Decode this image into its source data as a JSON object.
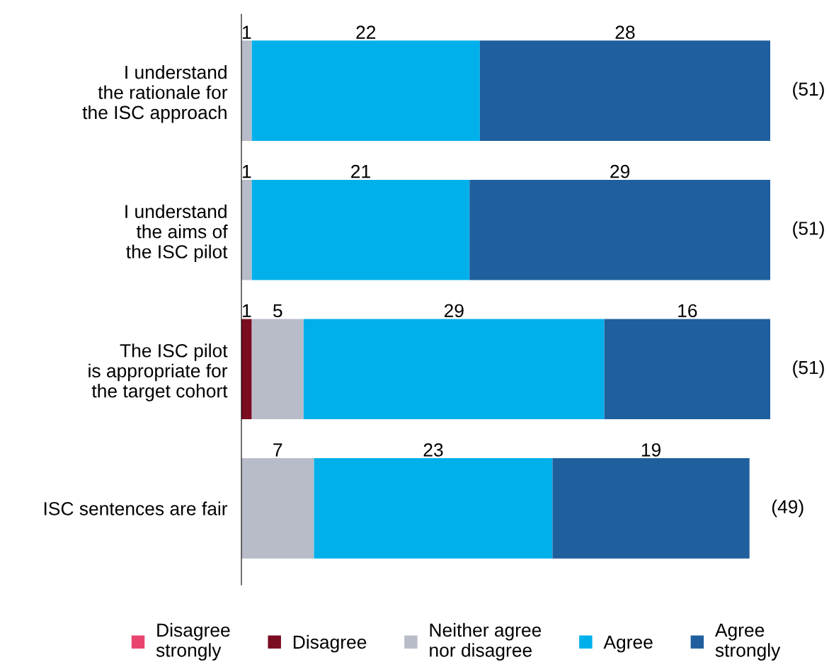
{
  "chart_data": {
    "type": "bar",
    "orientation": "horizontal",
    "stacked": true,
    "categories": [
      "I understand\nthe rationale for\nthe ISC approach",
      "I understand\nthe aims of\nthe ISC pilot",
      "The ISC pilot\nis appropriate for\nthe target cohort",
      "ISC sentences are fair"
    ],
    "series": [
      {
        "name": "Disagree\nstrongly",
        "color": "#e8446e",
        "values": [
          0,
          0,
          0,
          0
        ],
        "value_labels": [
          null,
          null,
          null,
          null
        ]
      },
      {
        "name": "Disagree",
        "color": "#7b0c21",
        "values": [
          0,
          0,
          1,
          0
        ],
        "value_labels": [
          null,
          null,
          "1",
          null
        ]
      },
      {
        "name": "Neither agree\nnor disagree",
        "color": "#b8bcc9",
        "values": [
          1,
          1,
          5,
          7
        ],
        "value_labels": [
          "1",
          "1",
          "5",
          "7"
        ]
      },
      {
        "name": "Agree",
        "color": "#00b0eb",
        "values": [
          22,
          21,
          29,
          23
        ],
        "value_labels": [
          "22",
          "21",
          "29",
          "23"
        ]
      },
      {
        "name": "Agree\nstrongly",
        "color": "#1f5f9e",
        "values": [
          28,
          29,
          16,
          19
        ],
        "value_labels": [
          "28",
          "29",
          "16",
          "19"
        ]
      }
    ],
    "totals": [
      "(51)",
      "(51)",
      "(51)",
      "(49)"
    ],
    "legend": "bottom",
    "grid": false
  }
}
